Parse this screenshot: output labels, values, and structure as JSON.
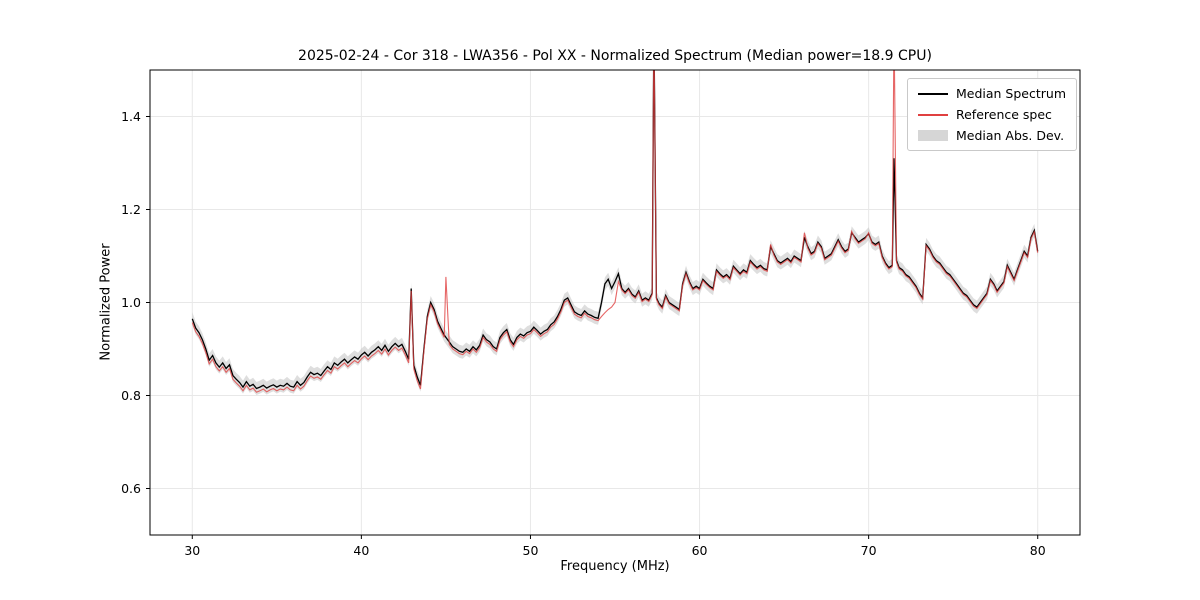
{
  "figure": {
    "title": "2025-02-24 - Cor 318 - LWA356 - Pol XX - Normalized Spectrum (Median power=18.9 CPU)",
    "xlabel": "Frequency (MHz)",
    "ylabel": "Normalized Power"
  },
  "legend": {
    "items": [
      {
        "label": "Median Spectrum",
        "type": "line"
      },
      {
        "label": "Reference spec",
        "type": "line"
      },
      {
        "label": "Median Abs. Dev.",
        "type": "patch"
      }
    ]
  },
  "chart_data": {
    "type": "line",
    "title": "2025-02-24 - Cor 318 - LWA356 - Pol XX - Normalized Spectrum (Median power=18.9 CPU)",
    "xlabel": "Frequency (MHz)",
    "ylabel": "Normalized Power",
    "xlim": [
      27.5,
      82.5
    ],
    "ylim": [
      0.5,
      1.5
    ],
    "xticks": [
      30,
      40,
      50,
      60,
      70,
      80
    ],
    "yticks": [
      0.6,
      0.8,
      1.0,
      1.2,
      1.4
    ],
    "grid": true,
    "legend_position": "upper right",
    "mad": 0.014,
    "colors": {
      "median": "#000000",
      "reference": "#e04040",
      "band": "#c8c8c8",
      "grid": "#e8e8e8"
    },
    "series_names": [
      "Median Spectrum",
      "Reference spec",
      "Median Abs. Dev."
    ],
    "points_format": [
      "frequency_mhz",
      "median_power",
      "reference_power"
    ],
    "points": [
      [
        30.0,
        0.965,
        0.957
      ],
      [
        30.2,
        0.945,
        0.937
      ],
      [
        30.4,
        0.935,
        0.927
      ],
      [
        30.6,
        0.92,
        0.912
      ],
      [
        30.8,
        0.9,
        0.892
      ],
      [
        31.0,
        0.876,
        0.868
      ],
      [
        31.2,
        0.886,
        0.878
      ],
      [
        31.4,
        0.87,
        0.862
      ],
      [
        31.6,
        0.861,
        0.853
      ],
      [
        31.8,
        0.87,
        0.862
      ],
      [
        32.0,
        0.858,
        0.85
      ],
      [
        32.2,
        0.866,
        0.858
      ],
      [
        32.4,
        0.843,
        0.835
      ],
      [
        32.6,
        0.835,
        0.827
      ],
      [
        32.8,
        0.828,
        0.82
      ],
      [
        33.0,
        0.818,
        0.81
      ],
      [
        33.2,
        0.83,
        0.822
      ],
      [
        33.4,
        0.82,
        0.812
      ],
      [
        33.6,
        0.824,
        0.816
      ],
      [
        33.8,
        0.815,
        0.807
      ],
      [
        34.0,
        0.818,
        0.81
      ],
      [
        34.2,
        0.822,
        0.814
      ],
      [
        34.4,
        0.816,
        0.808
      ],
      [
        34.6,
        0.82,
        0.812
      ],
      [
        34.8,
        0.823,
        0.815
      ],
      [
        35.0,
        0.818,
        0.81
      ],
      [
        35.2,
        0.822,
        0.814
      ],
      [
        35.4,
        0.82,
        0.812
      ],
      [
        35.6,
        0.826,
        0.818
      ],
      [
        35.8,
        0.82,
        0.812
      ],
      [
        36.0,
        0.818,
        0.81
      ],
      [
        36.2,
        0.83,
        0.822
      ],
      [
        36.4,
        0.822,
        0.814
      ],
      [
        36.6,
        0.828,
        0.82
      ],
      [
        36.8,
        0.84,
        0.832
      ],
      [
        37.0,
        0.85,
        0.842
      ],
      [
        37.2,
        0.845,
        0.837
      ],
      [
        37.4,
        0.848,
        0.84
      ],
      [
        37.6,
        0.843,
        0.835
      ],
      [
        37.8,
        0.853,
        0.845
      ],
      [
        38.0,
        0.862,
        0.854
      ],
      [
        38.2,
        0.856,
        0.848
      ],
      [
        38.4,
        0.87,
        0.862
      ],
      [
        38.6,
        0.865,
        0.857
      ],
      [
        38.8,
        0.872,
        0.864
      ],
      [
        39.0,
        0.878,
        0.87
      ],
      [
        39.2,
        0.87,
        0.862
      ],
      [
        39.4,
        0.877,
        0.869
      ],
      [
        39.6,
        0.883,
        0.875
      ],
      [
        39.8,
        0.878,
        0.87
      ],
      [
        40.0,
        0.887,
        0.879
      ],
      [
        40.2,
        0.893,
        0.885
      ],
      [
        40.4,
        0.885,
        0.877
      ],
      [
        40.6,
        0.893,
        0.885
      ],
      [
        40.8,
        0.898,
        0.89
      ],
      [
        41.0,
        0.905,
        0.897
      ],
      [
        41.2,
        0.897,
        0.889
      ],
      [
        41.4,
        0.908,
        0.9
      ],
      [
        41.6,
        0.895,
        0.887
      ],
      [
        41.8,
        0.905,
        0.897
      ],
      [
        42.0,
        0.912,
        0.904
      ],
      [
        42.2,
        0.905,
        0.897
      ],
      [
        42.4,
        0.91,
        0.902
      ],
      [
        42.6,
        0.895,
        0.887
      ],
      [
        42.8,
        0.878,
        0.87
      ],
      [
        42.95,
        1.03,
        1.025
      ],
      [
        43.1,
        0.865,
        0.857
      ],
      [
        43.3,
        0.84,
        0.832
      ],
      [
        43.5,
        0.822,
        0.814
      ],
      [
        43.7,
        0.9,
        0.895
      ],
      [
        43.9,
        0.97,
        0.965
      ],
      [
        44.1,
        1.0,
        0.995
      ],
      [
        44.3,
        0.985,
        0.98
      ],
      [
        44.5,
        0.96,
        0.955
      ],
      [
        44.7,
        0.945,
        0.94
      ],
      [
        44.9,
        0.93,
        0.925
      ],
      [
        45.0,
        0.925,
        1.055
      ],
      [
        45.2,
        0.915,
        0.91
      ],
      [
        45.4,
        0.905,
        0.9
      ],
      [
        45.6,
        0.9,
        0.895
      ],
      [
        45.8,
        0.895,
        0.89
      ],
      [
        46.0,
        0.893,
        0.888
      ],
      [
        46.2,
        0.9,
        0.895
      ],
      [
        46.4,
        0.895,
        0.89
      ],
      [
        46.6,
        0.905,
        0.9
      ],
      [
        46.8,
        0.898,
        0.893
      ],
      [
        47.0,
        0.908,
        0.903
      ],
      [
        47.2,
        0.93,
        0.925
      ],
      [
        47.4,
        0.92,
        0.915
      ],
      [
        47.6,
        0.915,
        0.91
      ],
      [
        47.8,
        0.905,
        0.9
      ],
      [
        48.0,
        0.9,
        0.895
      ],
      [
        48.2,
        0.925,
        0.92
      ],
      [
        48.4,
        0.935,
        0.93
      ],
      [
        48.6,
        0.942,
        0.937
      ],
      [
        48.8,
        0.92,
        0.915
      ],
      [
        49.0,
        0.91,
        0.905
      ],
      [
        49.2,
        0.925,
        0.92
      ],
      [
        49.4,
        0.932,
        0.927
      ],
      [
        49.6,
        0.928,
        0.923
      ],
      [
        49.8,
        0.935,
        0.93
      ],
      [
        50.0,
        0.938,
        0.933
      ],
      [
        50.2,
        0.947,
        0.942
      ],
      [
        50.4,
        0.94,
        0.935
      ],
      [
        50.6,
        0.932,
        0.927
      ],
      [
        50.8,
        0.938,
        0.933
      ],
      [
        51.0,
        0.942,
        0.937
      ],
      [
        51.2,
        0.952,
        0.947
      ],
      [
        51.4,
        0.958,
        0.953
      ],
      [
        51.6,
        0.97,
        0.965
      ],
      [
        51.8,
        0.985,
        0.98
      ],
      [
        52.0,
        1.005,
        1.0
      ],
      [
        52.2,
        1.01,
        1.005
      ],
      [
        52.4,
        0.995,
        0.99
      ],
      [
        52.6,
        0.98,
        0.975
      ],
      [
        52.8,
        0.975,
        0.97
      ],
      [
        53.0,
        0.972,
        0.967
      ],
      [
        53.2,
        0.982,
        0.977
      ],
      [
        53.4,
        0.975,
        0.97
      ],
      [
        53.6,
        0.972,
        0.967
      ],
      [
        53.8,
        0.968,
        0.963
      ],
      [
        54.0,
        0.966,
        0.961
      ],
      [
        54.2,
        1.0,
        0.97
      ],
      [
        54.4,
        1.04,
        0.978
      ],
      [
        54.6,
        1.05,
        0.985
      ],
      [
        54.8,
        1.03,
        0.99
      ],
      [
        55.0,
        1.045,
        1.0
      ],
      [
        55.2,
        1.062,
        1.045
      ],
      [
        55.4,
        1.03,
        1.027
      ],
      [
        55.6,
        1.022,
        1.019
      ],
      [
        55.8,
        1.03,
        1.027
      ],
      [
        56.0,
        1.018,
        1.015
      ],
      [
        56.2,
        1.012,
        1.009
      ],
      [
        56.4,
        1.025,
        1.022
      ],
      [
        56.6,
        1.005,
        1.002
      ],
      [
        56.8,
        1.01,
        1.007
      ],
      [
        57.0,
        1.005,
        1.002
      ],
      [
        57.2,
        1.02,
        1.017
      ],
      [
        57.3,
        1.6,
        1.6
      ],
      [
        57.45,
        1.01,
        1.007
      ],
      [
        57.6,
        0.998,
        0.995
      ],
      [
        57.8,
        0.99,
        0.987
      ],
      [
        58.0,
        1.015,
        1.012
      ],
      [
        58.2,
        1.0,
        0.997
      ],
      [
        58.4,
        0.995,
        0.992
      ],
      [
        58.6,
        0.99,
        0.987
      ],
      [
        58.8,
        0.985,
        0.982
      ],
      [
        59.0,
        1.04,
        1.037
      ],
      [
        59.2,
        1.065,
        1.062
      ],
      [
        59.4,
        1.045,
        1.042
      ],
      [
        59.6,
        1.03,
        1.027
      ],
      [
        59.8,
        1.035,
        1.032
      ],
      [
        60.0,
        1.03,
        1.027
      ],
      [
        60.2,
        1.05,
        1.047
      ],
      [
        60.4,
        1.042,
        1.039
      ],
      [
        60.6,
        1.035,
        1.032
      ],
      [
        60.8,
        1.03,
        1.027
      ],
      [
        61.0,
        1.07,
        1.067
      ],
      [
        61.2,
        1.062,
        1.059
      ],
      [
        61.4,
        1.055,
        1.052
      ],
      [
        61.6,
        1.06,
        1.057
      ],
      [
        61.8,
        1.052,
        1.049
      ],
      [
        62.0,
        1.078,
        1.075
      ],
      [
        62.2,
        1.07,
        1.067
      ],
      [
        62.4,
        1.062,
        1.059
      ],
      [
        62.6,
        1.07,
        1.067
      ],
      [
        62.8,
        1.065,
        1.062
      ],
      [
        63.0,
        1.09,
        1.087
      ],
      [
        63.2,
        1.082,
        1.079
      ],
      [
        63.4,
        1.075,
        1.072
      ],
      [
        63.6,
        1.08,
        1.077
      ],
      [
        63.8,
        1.073,
        1.07
      ],
      [
        64.0,
        1.07,
        1.067
      ],
      [
        64.2,
        1.12,
        1.125
      ],
      [
        64.4,
        1.105,
        1.102
      ],
      [
        64.6,
        1.09,
        1.087
      ],
      [
        64.8,
        1.085,
        1.082
      ],
      [
        65.0,
        1.09,
        1.087
      ],
      [
        65.2,
        1.095,
        1.092
      ],
      [
        65.4,
        1.088,
        1.085
      ],
      [
        65.6,
        1.1,
        1.097
      ],
      [
        65.8,
        1.095,
        1.092
      ],
      [
        66.0,
        1.09,
        1.087
      ],
      [
        66.2,
        1.14,
        1.15
      ],
      [
        66.4,
        1.12,
        1.117
      ],
      [
        66.6,
        1.105,
        1.102
      ],
      [
        66.8,
        1.11,
        1.107
      ],
      [
        67.0,
        1.13,
        1.127
      ],
      [
        67.2,
        1.12,
        1.117
      ],
      [
        67.4,
        1.095,
        1.092
      ],
      [
        67.6,
        1.1,
        1.097
      ],
      [
        67.8,
        1.105,
        1.102
      ],
      [
        68.0,
        1.12,
        1.117
      ],
      [
        68.2,
        1.135,
        1.132
      ],
      [
        68.4,
        1.12,
        1.117
      ],
      [
        68.6,
        1.11,
        1.107
      ],
      [
        68.8,
        1.115,
        1.112
      ],
      [
        69.0,
        1.15,
        1.153
      ],
      [
        69.2,
        1.14,
        1.137
      ],
      [
        69.4,
        1.13,
        1.127
      ],
      [
        69.6,
        1.135,
        1.132
      ],
      [
        69.8,
        1.14,
        1.137
      ],
      [
        70.0,
        1.148,
        1.15
      ],
      [
        70.2,
        1.13,
        1.127
      ],
      [
        70.4,
        1.125,
        1.122
      ],
      [
        70.6,
        1.13,
        1.127
      ],
      [
        70.8,
        1.1,
        1.097
      ],
      [
        71.0,
        1.085,
        1.082
      ],
      [
        71.2,
        1.075,
        1.072
      ],
      [
        71.4,
        1.08,
        1.077
      ],
      [
        71.5,
        1.31,
        1.6
      ],
      [
        71.65,
        1.09,
        1.087
      ],
      [
        71.8,
        1.075,
        1.072
      ],
      [
        72.0,
        1.07,
        1.067
      ],
      [
        72.2,
        1.06,
        1.057
      ],
      [
        72.4,
        1.055,
        1.052
      ],
      [
        72.6,
        1.045,
        1.042
      ],
      [
        72.8,
        1.035,
        1.032
      ],
      [
        73.0,
        1.02,
        1.017
      ],
      [
        73.2,
        1.01,
        1.007
      ],
      [
        73.4,
        1.125,
        1.122
      ],
      [
        73.6,
        1.115,
        1.112
      ],
      [
        73.8,
        1.1,
        1.097
      ],
      [
        74.0,
        1.09,
        1.087
      ],
      [
        74.2,
        1.085,
        1.082
      ],
      [
        74.4,
        1.075,
        1.072
      ],
      [
        74.6,
        1.065,
        1.062
      ],
      [
        74.8,
        1.06,
        1.057
      ],
      [
        75.0,
        1.05,
        1.047
      ],
      [
        75.2,
        1.04,
        1.037
      ],
      [
        75.4,
        1.03,
        1.027
      ],
      [
        75.6,
        1.02,
        1.017
      ],
      [
        75.8,
        1.015,
        1.012
      ],
      [
        76.0,
        1.005,
        1.002
      ],
      [
        76.2,
        0.995,
        0.992
      ],
      [
        76.4,
        0.99,
        0.987
      ],
      [
        76.6,
        1.0,
        0.997
      ],
      [
        76.8,
        1.01,
        1.007
      ],
      [
        77.0,
        1.02,
        1.017
      ],
      [
        77.2,
        1.05,
        1.047
      ],
      [
        77.4,
        1.04,
        1.037
      ],
      [
        77.6,
        1.025,
        1.022
      ],
      [
        77.8,
        1.035,
        1.032
      ],
      [
        78.0,
        1.045,
        1.042
      ],
      [
        78.2,
        1.08,
        1.077
      ],
      [
        78.4,
        1.065,
        1.062
      ],
      [
        78.6,
        1.05,
        1.047
      ],
      [
        78.8,
        1.07,
        1.067
      ],
      [
        79.0,
        1.09,
        1.087
      ],
      [
        79.2,
        1.11,
        1.107
      ],
      [
        79.4,
        1.1,
        1.097
      ],
      [
        79.6,
        1.14,
        1.137
      ],
      [
        79.8,
        1.155,
        1.152
      ],
      [
        80.0,
        1.11,
        1.107
      ]
    ]
  }
}
